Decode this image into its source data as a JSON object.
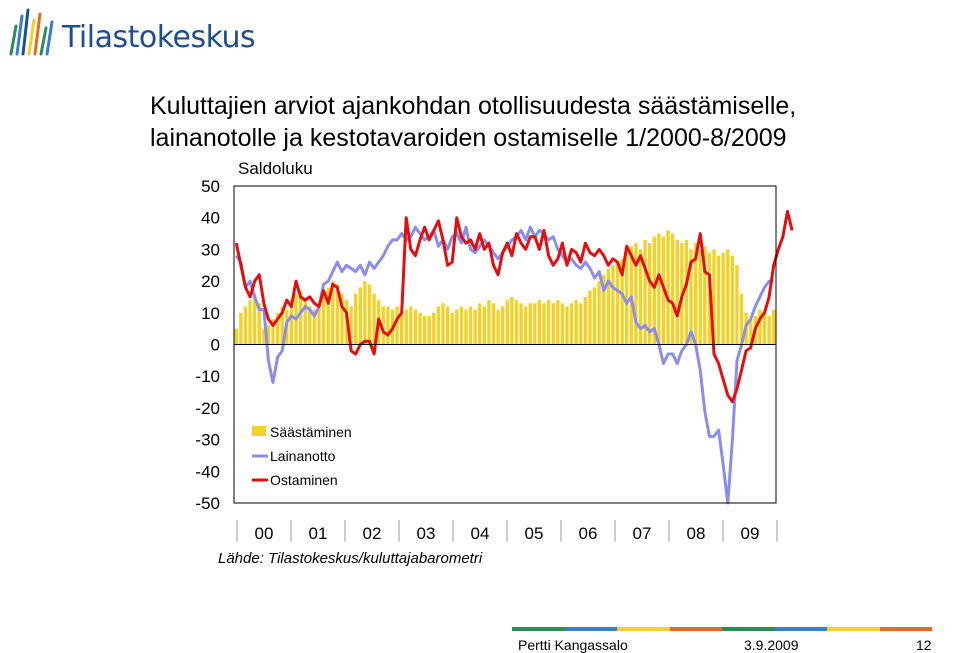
{
  "logo": {
    "text": "Tilastokeskus"
  },
  "title": {
    "line1": "Kuluttajien arviot ajankohdan otollisuudesta säästämiselle,",
    "line2": "lainanotolle ja kestotavaroiden ostamiselle 1/2000-8/2009"
  },
  "chart_data": {
    "type": "bar+line",
    "ylabel": "Saldoluku",
    "ylim": [
      -50,
      50
    ],
    "y_ticks": [
      "50",
      "40",
      "30",
      "20",
      "10",
      "0",
      "-10",
      "-20",
      "-30",
      "-40",
      "-50"
    ],
    "x_ticks": [
      "00",
      "01",
      "02",
      "03",
      "04",
      "05",
      "06",
      "07",
      "08",
      "09"
    ],
    "source": "Lähde: Tilastokeskus/kuluttajabarometri",
    "legend_position": "bottom-left",
    "series": [
      {
        "name": "Säästäminen",
        "kind": "bar",
        "color": "#f2d229",
        "values": [
          5,
          10,
          12,
          14,
          16,
          13,
          5,
          6,
          8,
          10,
          12,
          11,
          14,
          16,
          17,
          14,
          12,
          11,
          13,
          16,
          18,
          20,
          19,
          16,
          14,
          12,
          16,
          18,
          20,
          19,
          16,
          14,
          12,
          12,
          11,
          12,
          10,
          11,
          12,
          11,
          10,
          9,
          9,
          10,
          12,
          13,
          12,
          10,
          11,
          12,
          11,
          12,
          11,
          13,
          12,
          14,
          13,
          11,
          12,
          14,
          15,
          14,
          13,
          12,
          13,
          13,
          14,
          13,
          14,
          13,
          14,
          13,
          12,
          13,
          14,
          13,
          15,
          17,
          18,
          20,
          22,
          24,
          25,
          26,
          27,
          29,
          31,
          32,
          30,
          33,
          32,
          34,
          35,
          34,
          36,
          35,
          33,
          32,
          33,
          30,
          32,
          30,
          31,
          29,
          30,
          28,
          29,
          30,
          28,
          25,
          16,
          10,
          8,
          9,
          11,
          10,
          9,
          11
        ]
      },
      {
        "name": "Lainanotto",
        "kind": "line",
        "color": "#8a8ee8",
        "values": [
          28,
          26,
          18,
          20,
          15,
          11,
          11,
          -5,
          -12,
          -4,
          -2,
          7,
          9,
          8,
          10,
          12,
          11,
          9,
          12,
          19,
          20,
          23,
          26,
          23,
          25,
          24,
          23,
          25,
          22,
          26,
          24,
          26,
          28,
          31,
          33,
          33,
          35,
          33,
          34,
          37,
          35,
          33,
          34,
          36,
          31,
          33,
          30,
          34,
          35,
          32,
          37,
          30,
          29,
          31,
          33,
          31,
          29,
          27,
          29,
          31,
          33,
          34,
          36,
          33,
          37,
          34,
          36,
          35,
          33,
          34,
          30,
          28,
          26,
          27,
          25,
          24,
          26,
          24,
          21,
          23,
          17,
          20,
          18,
          17,
          16,
          13,
          15,
          7,
          5,
          6,
          4,
          5,
          0,
          -6,
          -3,
          -3,
          -6,
          -2,
          0,
          4,
          0,
          -8,
          -21,
          -29,
          -29,
          -27,
          -38,
          -50,
          -30,
          -5,
          0,
          6,
          8,
          12,
          15,
          18,
          20,
          20
        ]
      },
      {
        "name": "Ostaminen",
        "kind": "line",
        "color": "#e01010",
        "values": [
          32,
          25,
          18,
          15,
          20,
          22,
          13,
          8,
          6,
          8,
          10,
          14,
          12,
          20,
          15,
          14,
          15,
          13,
          12,
          17,
          13,
          19,
          18,
          12,
          10,
          -2,
          -3,
          0,
          1,
          1,
          -3,
          8,
          4,
          3,
          5,
          8,
          10,
          40,
          30,
          28,
          33,
          37,
          33,
          36,
          39,
          33,
          25,
          26,
          40,
          34,
          32,
          33,
          30,
          35,
          30,
          32,
          25,
          22,
          29,
          32,
          28,
          35,
          32,
          30,
          34,
          34,
          30,
          36,
          28,
          25,
          27,
          32,
          25,
          30,
          29,
          26,
          32,
          29,
          28,
          30,
          28,
          25,
          27,
          26,
          22,
          31,
          28,
          25,
          28,
          24,
          20,
          18,
          22,
          18,
          14,
          13,
          9,
          15,
          19,
          26,
          27,
          35,
          23,
          22,
          -3,
          -6,
          -11,
          -16,
          -18,
          -14,
          -8,
          -2,
          -1,
          5,
          8,
          10,
          15,
          25,
          30,
          34,
          42,
          36
        ]
      }
    ]
  },
  "footer": {
    "author": "Pertti Kangassalo",
    "date": "3.9.2009",
    "page": "12",
    "stripe_colors": [
      "#2e8b57",
      "#3a7bd5",
      "#f2d229",
      "#e56b1f",
      "#2e8b57",
      "#3a7bd5",
      "#f2d229",
      "#e56b1f"
    ]
  }
}
